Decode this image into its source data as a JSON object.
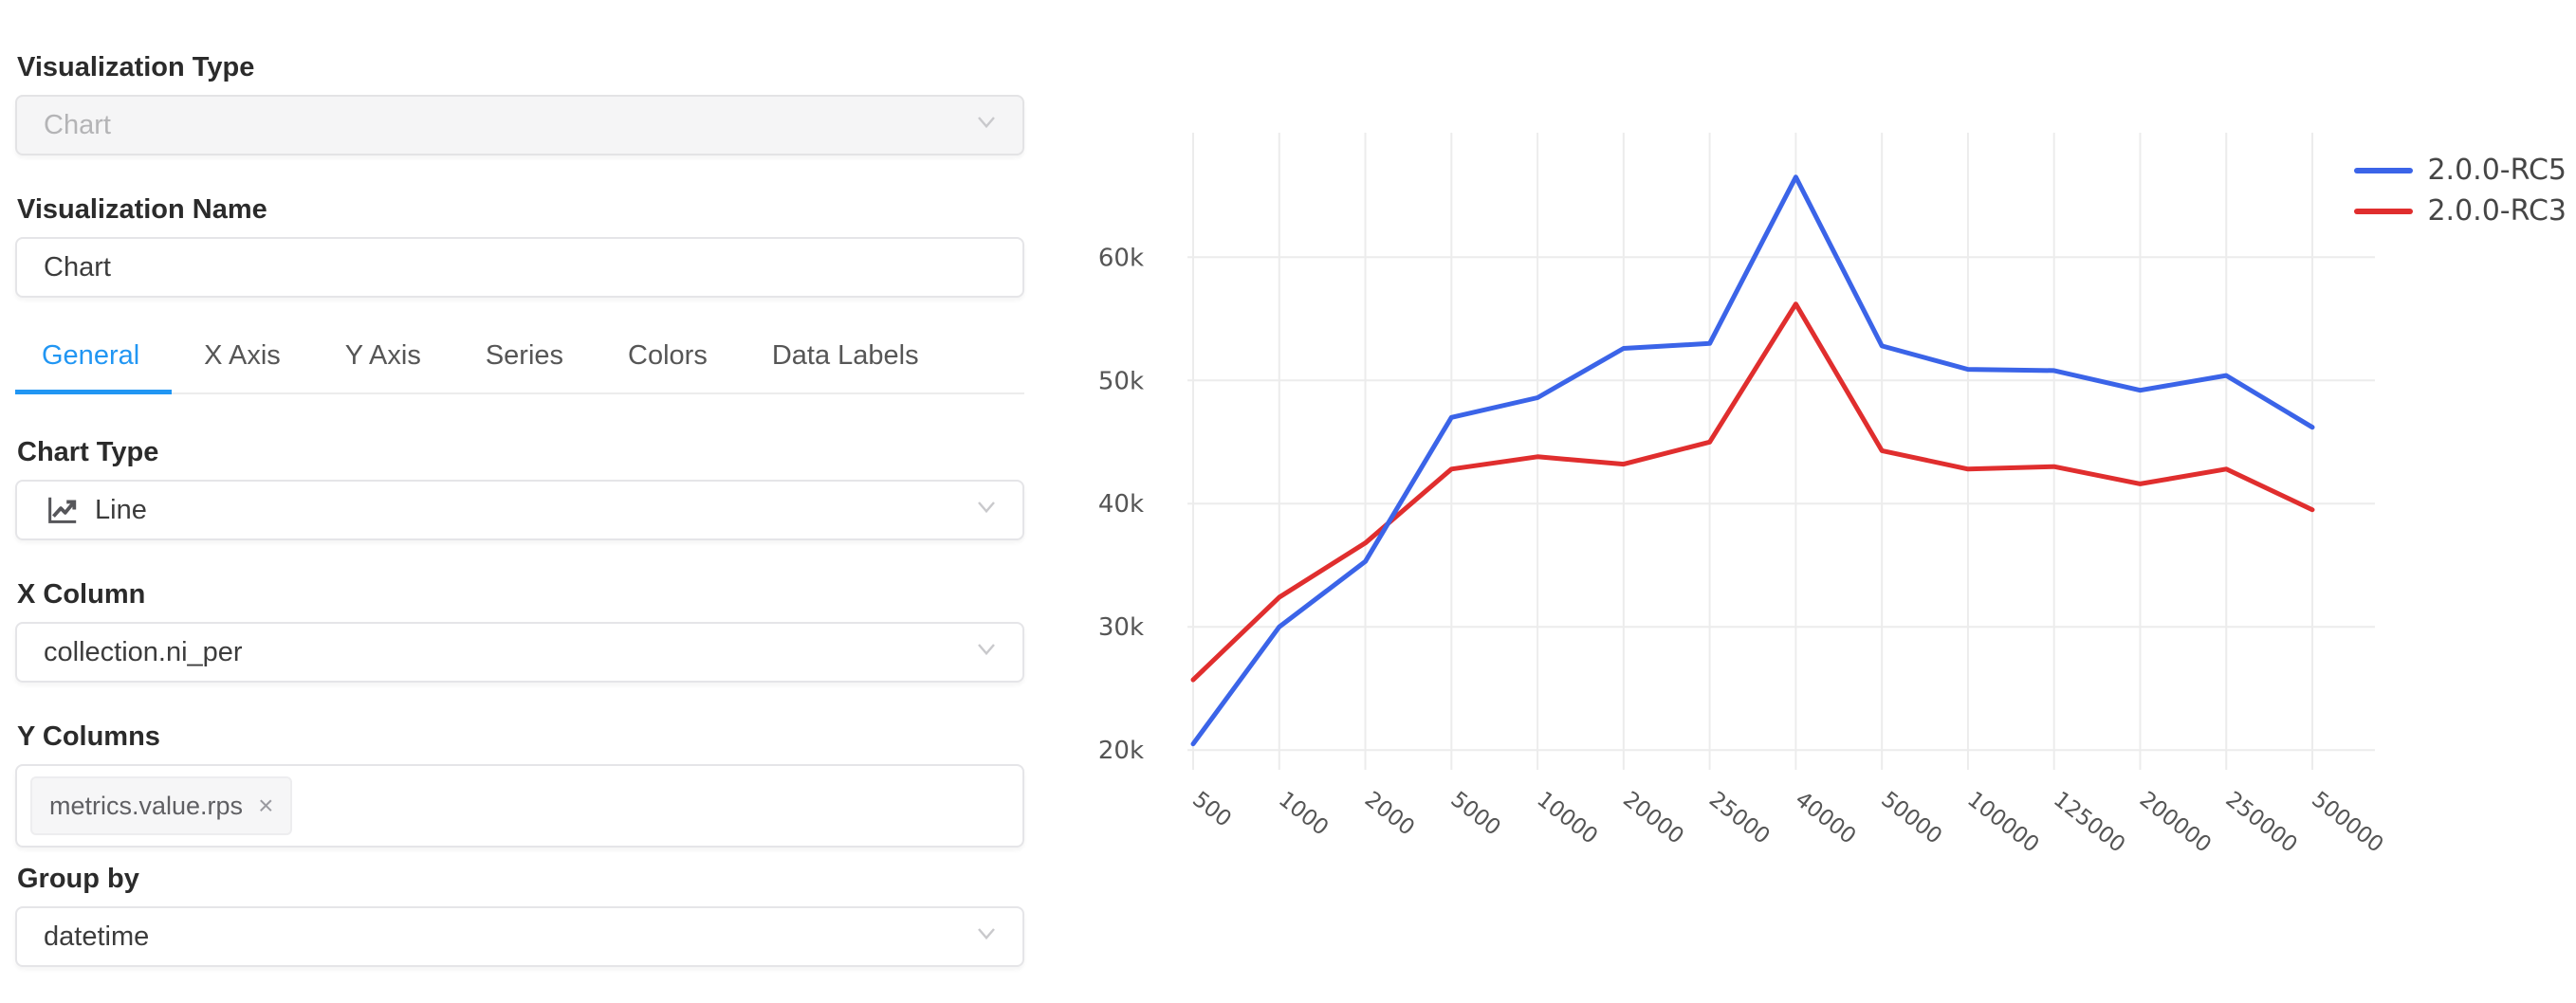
{
  "panel": {
    "visualization_type": {
      "label": "Visualization Type",
      "value": "Chart",
      "disabled": true
    },
    "visualization_name": {
      "label": "Visualization Name",
      "value": "Chart"
    },
    "tabs": [
      {
        "label": "General",
        "active": true
      },
      {
        "label": "X Axis",
        "active": false
      },
      {
        "label": "Y Axis",
        "active": false
      },
      {
        "label": "Series",
        "active": false
      },
      {
        "label": "Colors",
        "active": false
      },
      {
        "label": "Data Labels",
        "active": false
      }
    ],
    "chart_type": {
      "label": "Chart Type",
      "value": "Line",
      "icon": "line-chart-icon"
    },
    "x_column": {
      "label": "X Column",
      "value": "collection.ni_per"
    },
    "y_columns": {
      "label": "Y Columns",
      "remove_glyph": "×",
      "tags": [
        {
          "text": "metrics.value.rps"
        }
      ]
    },
    "group_by": {
      "label": "Group by",
      "value": "datetime"
    }
  },
  "colors": {
    "accent_blue": "#2196f3",
    "series_blue": "#3b64e8",
    "series_red": "#e02e2e",
    "grid": "#ececec",
    "axis_text": "#555555"
  },
  "chart_data": {
    "type": "line",
    "title": "",
    "xlabel": "",
    "ylabel": "",
    "categories": [
      "500",
      "1000",
      "2000",
      "5000",
      "10000",
      "20000",
      "25000",
      "40000",
      "50000",
      "100000",
      "125000",
      "200000",
      "250000",
      "500000"
    ],
    "series": [
      {
        "name": "2.0.0-RC5",
        "color": "#3b64e8",
        "values": [
          20500,
          30000,
          35300,
          47000,
          48600,
          52600,
          53000,
          66500,
          52800,
          50900,
          50800,
          49200,
          50400,
          46200
        ]
      },
      {
        "name": "2.0.0-RC3",
        "color": "#e02e2e",
        "values": [
          25700,
          32400,
          36800,
          42800,
          43800,
          43200,
          45000,
          56200,
          44300,
          42800,
          43000,
          41600,
          42800,
          39500
        ]
      }
    ],
    "yticks": [
      {
        "value": 20000,
        "label": "20k"
      },
      {
        "value": 30000,
        "label": "30k"
      },
      {
        "value": 40000,
        "label": "40k"
      },
      {
        "value": 50000,
        "label": "50k"
      },
      {
        "value": 60000,
        "label": "60k"
      }
    ],
    "ylim": [
      18400,
      70100
    ],
    "grid": true,
    "legend_position": "top-right",
    "x_axis_label_rotation": 38
  }
}
